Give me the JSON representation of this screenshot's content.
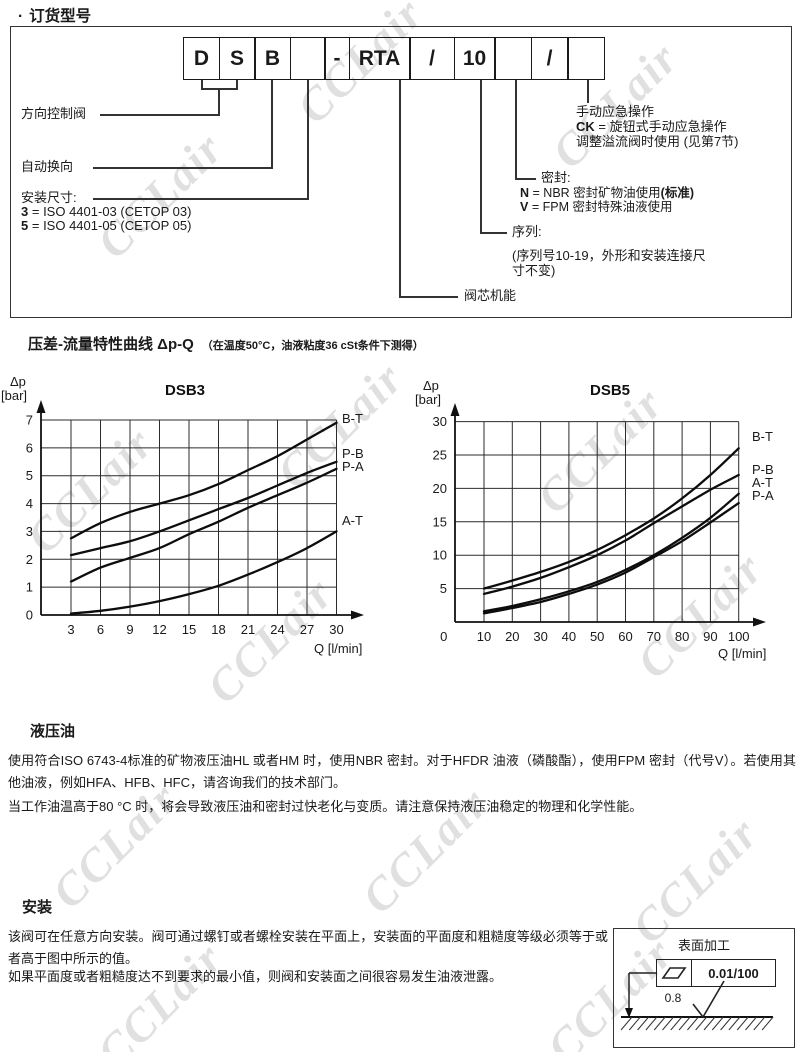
{
  "watermark": {
    "text": "CCLair",
    "color": "#c7c7c7"
  },
  "ordering": {
    "bullet": "·",
    "title": "订货型号",
    "code_cells": [
      "D",
      "S",
      "B",
      "",
      "-",
      "RTA",
      "/",
      "10",
      "",
      "/",
      ""
    ],
    "labels": {
      "directional": "方向控制阀",
      "auto_reverse": "自动换向",
      "mounting": "安装尺寸:",
      "mounting_options": [
        {
          "code": "3",
          "text": "= ISO 4401-03 (CETOP 03)"
        },
        {
          "code": "5",
          "text": "= ISO 4401-05 (CETOP 05)"
        }
      ],
      "spool": "阀芯机能",
      "series": "序列:",
      "series_note1": "(序列号10-19，外形和安装连接尺",
      "series_note2": "寸不变)",
      "seal": "密封:",
      "seal_options": [
        {
          "code": "N",
          "text": "= NBR 密封矿物油使用",
          "suffix": "(标准)"
        },
        {
          "code": "V",
          "text": "= FPM 密封特殊油液使用",
          "suffix": ""
        }
      ],
      "manual": "手动应急操作",
      "manual_option": {
        "code": "CK",
        "text": "= 旋钮式手动应急操作"
      },
      "manual_note": "调整溢流阀时使用 (见第7节)"
    }
  },
  "charts": {
    "section_title": "压差-流量特性曲线 Δp-Q",
    "section_subtitle": "（在温度50°C，油液粘度36 cSt条件下测得）"
  },
  "chart_data": [
    {
      "type": "line",
      "title": "DSB3",
      "ylabel": "Δp",
      "ylabel_unit": "[bar]",
      "xlabel": "Q [l/min]",
      "xlim": [
        3,
        30
      ],
      "ylim": [
        0,
        7
      ],
      "xticks": [
        3,
        6,
        9,
        12,
        15,
        18,
        21,
        24,
        27,
        30
      ],
      "yticks": [
        7,
        6,
        5,
        4,
        3,
        2,
        1,
        0
      ],
      "grid": true,
      "legend_position": "right-outside",
      "x": [
        3,
        6,
        9,
        12,
        15,
        18,
        21,
        24,
        27,
        30
      ],
      "series": [
        {
          "name": "B-T",
          "values": [
            2.75,
            3.3,
            3.7,
            4.0,
            4.3,
            4.7,
            5.2,
            5.7,
            6.3,
            6.9
          ]
        },
        {
          "name": "P-B",
          "values": [
            2.15,
            2.4,
            2.65,
            3.0,
            3.4,
            3.8,
            4.2,
            4.65,
            5.1,
            5.5
          ]
        },
        {
          "name": "P-A",
          "values": [
            1.2,
            1.7,
            2.05,
            2.4,
            2.9,
            3.35,
            3.85,
            4.3,
            4.75,
            5.25
          ]
        },
        {
          "name": "A-T",
          "values": [
            0.05,
            0.15,
            0.3,
            0.5,
            0.75,
            1.05,
            1.45,
            1.9,
            2.4,
            3.0
          ]
        }
      ]
    },
    {
      "type": "line",
      "title": "DSB5",
      "ylabel": "Δp",
      "ylabel_unit": "[bar]",
      "xlabel": "Q [l/min]",
      "xlim": [
        0,
        100
      ],
      "ylim": [
        0,
        30
      ],
      "xticks": [
        0,
        10,
        20,
        30,
        40,
        50,
        60,
        70,
        80,
        90,
        100
      ],
      "yticks": [
        30,
        25,
        20,
        15,
        10,
        5
      ],
      "grid": true,
      "legend_position": "right-outside",
      "x": [
        10,
        20,
        30,
        40,
        50,
        60,
        70,
        80,
        90,
        100
      ],
      "series": [
        {
          "name": "B-T",
          "values": [
            5.0,
            6.2,
            7.5,
            9.0,
            10.8,
            13.0,
            15.5,
            18.5,
            22.0,
            26.0
          ]
        },
        {
          "name": "P-B",
          "values": [
            4.2,
            5.3,
            6.6,
            8.2,
            10.0,
            12.2,
            14.8,
            17.3,
            19.8,
            22.0
          ]
        },
        {
          "name": "A-T",
          "values": [
            1.6,
            2.4,
            3.4,
            4.6,
            6.0,
            7.8,
            10.0,
            12.6,
            15.6,
            19.2
          ]
        },
        {
          "name": "P-A",
          "values": [
            1.3,
            2.1,
            3.0,
            4.2,
            5.6,
            7.4,
            9.7,
            12.1,
            14.9,
            17.8
          ]
        }
      ]
    }
  ],
  "oil": {
    "title": "液压油",
    "p1": "使用符合ISO 6743-4标准的矿物液压油HL 或者HM 时，使用NBR 密封。对于HFDR 油液（磷酸酯），使用FPM 密封（代号V）。若使用其他油液，例如HFA、HFB、HFC，请咨询我们的技术部门。",
    "p2": "当工作油温高于80 °C 时，将会导致液压油和密封过快老化与变质。请注意保持液压油稳定的物理和化学性能。"
  },
  "install": {
    "title": "安装",
    "p1": "该阀可在任意方向安装。阀可通过螺钉或者螺栓安装在平面上，安装面的平面度和粗糙度等级必须等于或者高于图中所示的值。",
    "p2": "如果平面度或者粗糙度达不到要求的最小值，则阀和安装面之间很容易发生油液泄露。",
    "figure": {
      "title": "表面加工",
      "flatness_value": "0.01/100",
      "roughness_value": "0.8"
    }
  }
}
